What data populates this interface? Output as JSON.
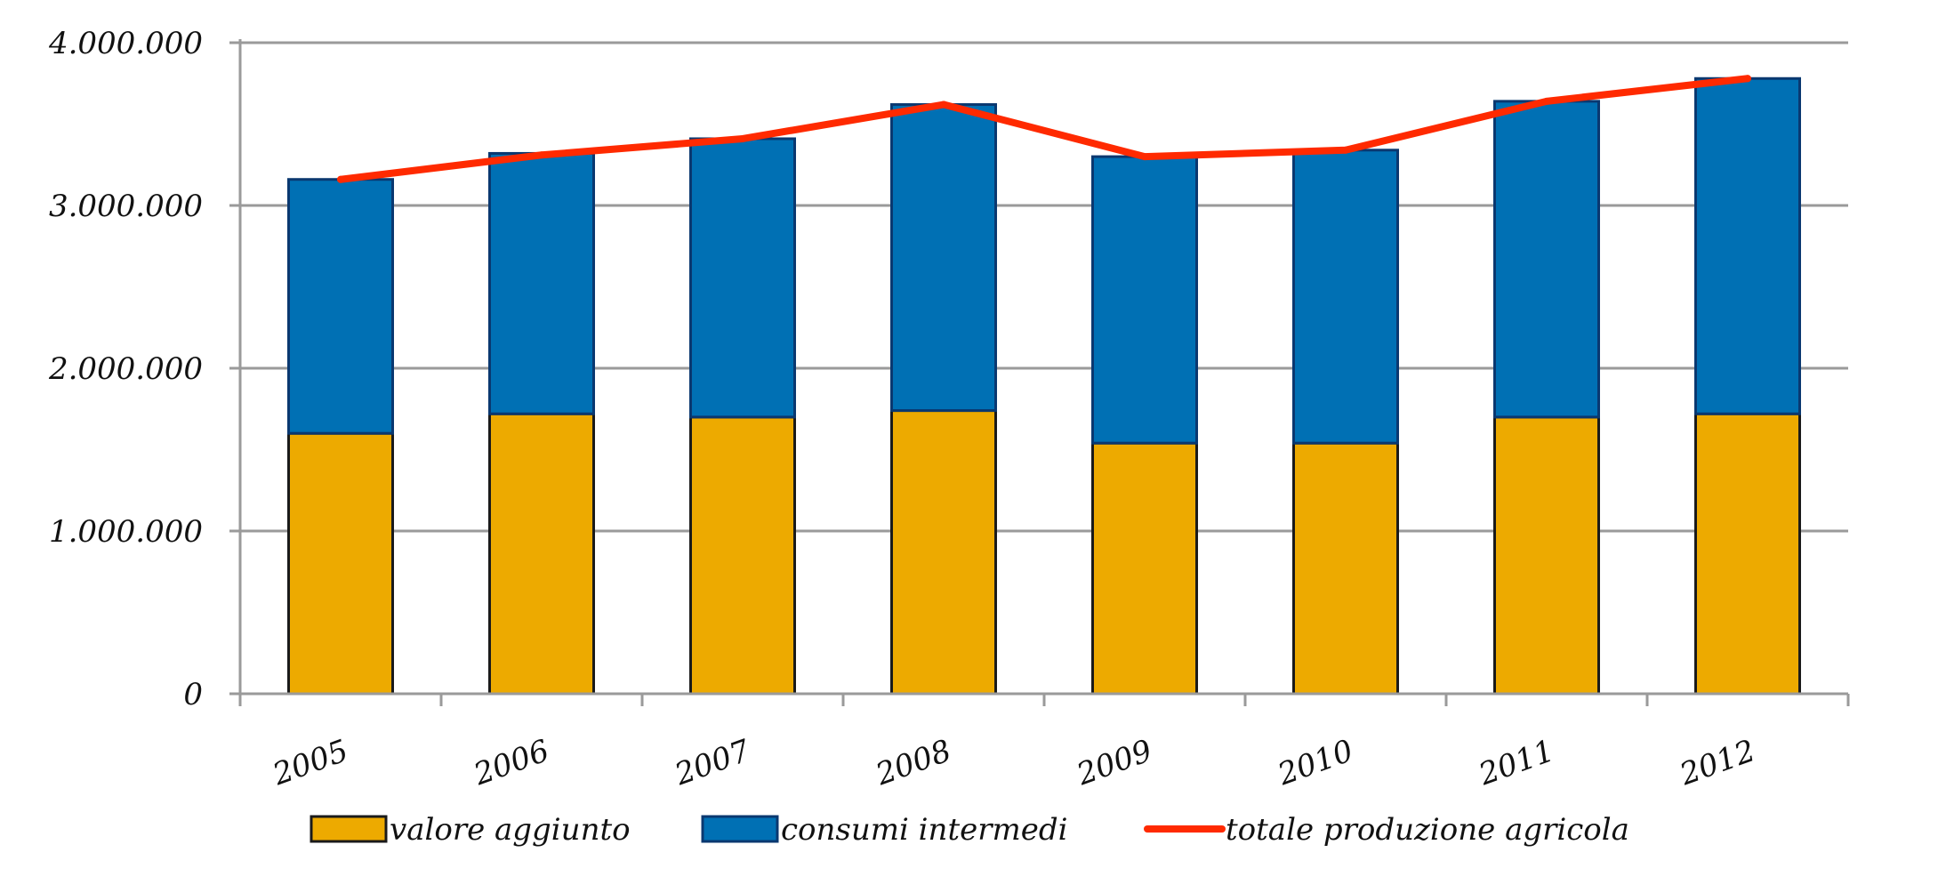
{
  "chart_data": {
    "type": "bar",
    "stacked": true,
    "categories": [
      "2005",
      "2006",
      "2007",
      "2008",
      "2009",
      "2010",
      "2011",
      "2012"
    ],
    "series": [
      {
        "name": "valore aggiunto",
        "kind": "bar",
        "color": "#EDAA00",
        "values": [
          1600000,
          1720000,
          1700000,
          1740000,
          1540000,
          1540000,
          1700000,
          1720000
        ]
      },
      {
        "name": "consumi intermedi",
        "kind": "bar",
        "color": "#0070B4",
        "values": [
          1560000,
          1600000,
          1710000,
          1880000,
          1760000,
          1800000,
          1940000,
          2060000
        ]
      },
      {
        "name": "totale produzione agricola",
        "kind": "line",
        "color": "#FF2A00",
        "values": [
          3160000,
          3310000,
          3410000,
          3620000,
          3300000,
          3340000,
          3640000,
          3780000
        ]
      }
    ],
    "y_ticks": [
      "0",
      "1.000.000",
      "2.000.000",
      "3.000.000",
      "4.000.000"
    ],
    "y_tick_values": [
      0,
      1000000,
      2000000,
      3000000,
      4000000
    ],
    "ylim": [
      0,
      4000000
    ],
    "grid": true,
    "legend_position": "bottom",
    "title": "",
    "xlabel": "",
    "ylabel": ""
  }
}
